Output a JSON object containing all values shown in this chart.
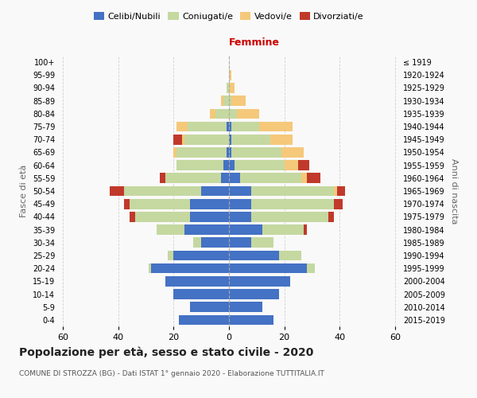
{
  "age_groups": [
    "0-4",
    "5-9",
    "10-14",
    "15-19",
    "20-24",
    "25-29",
    "30-34",
    "35-39",
    "40-44",
    "45-49",
    "50-54",
    "55-59",
    "60-64",
    "65-69",
    "70-74",
    "75-79",
    "80-84",
    "85-89",
    "90-94",
    "95-99",
    "100+"
  ],
  "birth_years": [
    "2015-2019",
    "2010-2014",
    "2005-2009",
    "2000-2004",
    "1995-1999",
    "1990-1994",
    "1985-1989",
    "1980-1984",
    "1975-1979",
    "1970-1974",
    "1965-1969",
    "1960-1964",
    "1955-1959",
    "1950-1954",
    "1945-1949",
    "1940-1944",
    "1935-1939",
    "1930-1934",
    "1925-1929",
    "1920-1924",
    "≤ 1919"
  ],
  "male": {
    "celibi": [
      18,
      14,
      20,
      23,
      28,
      20,
      10,
      16,
      14,
      14,
      10,
      3,
      2,
      1,
      0,
      1,
      0,
      0,
      0,
      0,
      0
    ],
    "coniugati": [
      0,
      0,
      0,
      0,
      1,
      2,
      3,
      10,
      20,
      22,
      28,
      20,
      17,
      18,
      16,
      14,
      5,
      2,
      1,
      0,
      0
    ],
    "vedovi": [
      0,
      0,
      0,
      0,
      0,
      0,
      0,
      0,
      0,
      0,
      0,
      0,
      0,
      1,
      1,
      4,
      2,
      1,
      0,
      0,
      0
    ],
    "divorziati": [
      0,
      0,
      0,
      0,
      0,
      0,
      0,
      0,
      2,
      2,
      5,
      2,
      0,
      0,
      3,
      0,
      0,
      0,
      0,
      0,
      0
    ]
  },
  "female": {
    "nubili": [
      16,
      12,
      18,
      22,
      28,
      18,
      8,
      12,
      8,
      8,
      8,
      4,
      2,
      1,
      1,
      1,
      0,
      0,
      0,
      0,
      0
    ],
    "coniugate": [
      0,
      0,
      0,
      0,
      3,
      8,
      8,
      15,
      28,
      30,
      30,
      22,
      18,
      18,
      14,
      10,
      3,
      1,
      0,
      0,
      0
    ],
    "vedove": [
      0,
      0,
      0,
      0,
      0,
      0,
      0,
      0,
      0,
      0,
      1,
      2,
      5,
      8,
      8,
      12,
      8,
      5,
      2,
      1,
      0
    ],
    "divorziate": [
      0,
      0,
      0,
      0,
      0,
      0,
      0,
      1,
      2,
      3,
      3,
      5,
      4,
      0,
      0,
      0,
      0,
      0,
      0,
      0,
      0
    ]
  },
  "colors": {
    "celibi": "#4472c4",
    "coniugati": "#c5d8a0",
    "vedovi": "#f5c87a",
    "divorziati": "#c0392b"
  },
  "title": "Popolazione per età, sesso e stato civile - 2020",
  "subtitle": "COMUNE DI STROZZA (BG) - Dati ISTAT 1° gennaio 2020 - Elaborazione TUTTITALIA.IT",
  "xlabel_right": "Femmine",
  "ylabel_left": "Fasce di età",
  "ylabel_right": "Anni di nascita",
  "xlim": 62,
  "bg_color": "#f9f9f9",
  "grid_color": "#cccccc"
}
